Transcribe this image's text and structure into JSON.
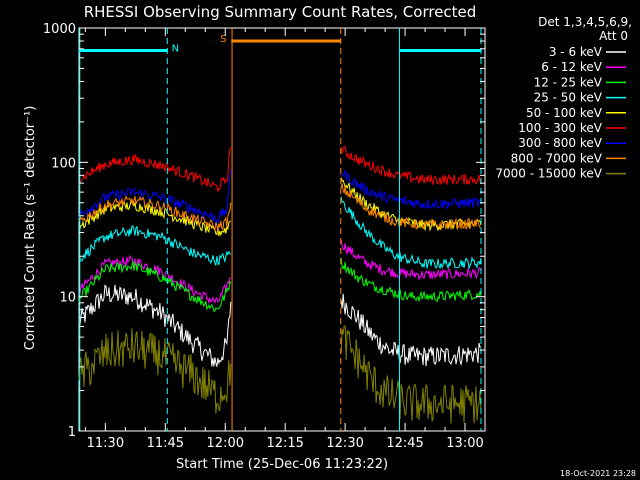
{
  "chart_data": {
    "type": "line",
    "title": "RHESSI Observing Summary Count Rates, Corrected",
    "xlabel": "Start Time (25-Dec-06 11:23:22)",
    "ylabel": "Corrected Count Rate (s⁻¹ detector⁻¹)",
    "x_ticks": [
      "11:30",
      "11:45",
      "12:00",
      "12:15",
      "12:30",
      "12:45",
      "13:00"
    ],
    "x_tick_minutes": [
      30,
      45,
      60,
      75,
      90,
      105,
      120
    ],
    "xlim_minutes": [
      23.4,
      125.0
    ],
    "y_scale": "log",
    "ylim": [
      1,
      1000
    ],
    "y_ticks": [
      "1",
      "10",
      "100",
      "1000"
    ],
    "legend_header": [
      "Det 1,3,4,5,6,9,",
      "Att 0"
    ],
    "legend_position": "right",
    "footer_date": "18-Oct-2021 23:28",
    "gaps_minutes": [
      [
        61.5,
        89.0
      ]
    ],
    "series": [
      {
        "name": "3 - 6 keV",
        "color": "#ffffff",
        "points": [
          [
            23.4,
            6.5
          ],
          [
            30,
            10.5
          ],
          [
            37,
            10
          ],
          [
            44,
            7.5
          ],
          [
            52,
            4.5
          ],
          [
            58,
            3.2
          ],
          [
            60.5,
            4.5
          ],
          [
            61.5,
            10
          ],
          [
            89,
            9.5
          ],
          [
            93,
            7
          ],
          [
            97,
            5
          ],
          [
            101,
            4
          ],
          [
            106,
            3.6
          ],
          [
            113,
            3.6
          ],
          [
            124,
            3.8
          ]
        ]
      },
      {
        "name": "6 - 12 keV",
        "color": "#ff00ff",
        "points": [
          [
            23.4,
            11
          ],
          [
            30,
            17.5
          ],
          [
            37,
            18.5
          ],
          [
            44,
            15.5
          ],
          [
            52,
            11
          ],
          [
            58,
            9
          ],
          [
            60.5,
            12
          ],
          [
            61.5,
            15
          ],
          [
            89,
            25
          ],
          [
            92,
            21
          ],
          [
            95,
            18
          ],
          [
            99,
            16
          ],
          [
            103,
            15
          ],
          [
            110,
            14.5
          ],
          [
            124,
            15
          ]
        ]
      },
      {
        "name": "12 - 25 keV",
        "color": "#00ff00",
        "points": [
          [
            23.4,
            9.5
          ],
          [
            30,
            16
          ],
          [
            37,
            17
          ],
          [
            44,
            14
          ],
          [
            52,
            10
          ],
          [
            58,
            8
          ],
          [
            60.5,
            11
          ],
          [
            61.5,
            14
          ],
          [
            89,
            18
          ],
          [
            93,
            14
          ],
          [
            97,
            12
          ],
          [
            101,
            11
          ],
          [
            106,
            10
          ],
          [
            113,
            10
          ],
          [
            124,
            10.5
          ]
        ]
      },
      {
        "name": "25 - 50 keV",
        "color": "#00ffff",
        "points": [
          [
            23.4,
            19
          ],
          [
            30,
            28
          ],
          [
            37,
            31
          ],
          [
            44,
            28
          ],
          [
            52,
            21
          ],
          [
            58,
            18.5
          ],
          [
            60.5,
            20
          ],
          [
            61.5,
            22
          ],
          [
            89,
            52
          ],
          [
            92,
            40
          ],
          [
            95,
            31
          ],
          [
            99,
            24
          ],
          [
            103,
            20
          ],
          [
            110,
            17.5
          ],
          [
            124,
            18
          ]
        ]
      },
      {
        "name": "50 - 100 keV",
        "color": "#ffff00",
        "points": [
          [
            23.4,
            33
          ],
          [
            30,
            45
          ],
          [
            37,
            48
          ],
          [
            44,
            43
          ],
          [
            52,
            35
          ],
          [
            58,
            30
          ],
          [
            60.5,
            32
          ],
          [
            61.5,
            40
          ],
          [
            89,
            75
          ],
          [
            92,
            60
          ],
          [
            95,
            50
          ],
          [
            99,
            42
          ],
          [
            103,
            37
          ],
          [
            110,
            34
          ],
          [
            124,
            35
          ]
        ]
      },
      {
        "name": "100 - 300 keV",
        "color": "#ff0000",
        "points": [
          [
            23.4,
            75
          ],
          [
            30,
            97
          ],
          [
            37,
            105
          ],
          [
            44,
            95
          ],
          [
            52,
            78
          ],
          [
            58,
            65
          ],
          [
            60.5,
            75
          ],
          [
            61.5,
            150
          ],
          [
            89,
            125
          ],
          [
            92,
            110
          ],
          [
            95,
            98
          ],
          [
            99,
            88
          ],
          [
            103,
            80
          ],
          [
            110,
            74
          ],
          [
            124,
            75
          ]
        ]
      },
      {
        "name": "300 - 800 keV",
        "color": "#0000ff",
        "points": [
          [
            23.4,
            40
          ],
          [
            30,
            55
          ],
          [
            37,
            60
          ],
          [
            44,
            55
          ],
          [
            52,
            45
          ],
          [
            58,
            38
          ],
          [
            60.5,
            45
          ],
          [
            61.5,
            100
          ],
          [
            89,
            85
          ],
          [
            92,
            72
          ],
          [
            95,
            63
          ],
          [
            99,
            56
          ],
          [
            103,
            52
          ],
          [
            110,
            49
          ],
          [
            124,
            50
          ]
        ]
      },
      {
        "name": "800 - 7000 keV",
        "color": "#ff8800",
        "points": [
          [
            23.4,
            36
          ],
          [
            30,
            48
          ],
          [
            37,
            52
          ],
          [
            44,
            47
          ],
          [
            52,
            38
          ],
          [
            58,
            33
          ],
          [
            60.5,
            36
          ],
          [
            61.5,
            48
          ],
          [
            89,
            65
          ],
          [
            92,
            55
          ],
          [
            95,
            46
          ],
          [
            99,
            40
          ],
          [
            103,
            36
          ],
          [
            110,
            34
          ],
          [
            124,
            35
          ]
        ]
      },
      {
        "name": "7000 - 15000 keV",
        "color": "#808000",
        "points": [
          [
            23.4,
            2.5
          ],
          [
            30,
            3.8
          ],
          [
            37,
            4.2
          ],
          [
            44,
            3.6
          ],
          [
            52,
            2.6
          ],
          [
            58,
            1.8
          ],
          [
            60.5,
            2.2
          ],
          [
            61.5,
            3
          ],
          [
            89,
            5
          ],
          [
            93,
            3.5
          ],
          [
            97,
            2.3
          ],
          [
            101,
            1.8
          ],
          [
            106,
            1.6
          ],
          [
            113,
            1.6
          ],
          [
            124,
            1.6
          ]
        ]
      }
    ],
    "annotations": [
      {
        "type": "hbar",
        "label": "N",
        "color": "#00ffff",
        "x_minutes": [
          23.4,
          45.5
        ],
        "y": 680
      },
      {
        "type": "hbar",
        "label": "S",
        "color": "#ff8800",
        "x_minutes": [
          61.5,
          88.9
        ],
        "y": 800
      },
      {
        "type": "hbar",
        "label": "",
        "color": "#00ffff",
        "x_minutes": [
          103.6,
          124.0
        ],
        "y": 680
      },
      {
        "type": "vline",
        "style": "solid",
        "color": "#00ffff",
        "x_minutes": 23.6
      },
      {
        "type": "vline",
        "style": "dashed",
        "color": "#00ffff",
        "x_minutes": 45.5
      },
      {
        "type": "vline",
        "style": "solid",
        "color": "#ff8800",
        "x_minutes": 61.7
      },
      {
        "type": "vline",
        "style": "dashed",
        "color": "#ff8800",
        "x_minutes": 88.9
      },
      {
        "type": "vline",
        "style": "solid",
        "color": "#00ffff",
        "x_minutes": 103.6
      },
      {
        "type": "vline",
        "style": "dashed",
        "color": "#00ffff",
        "x_minutes": 124.0
      }
    ]
  }
}
